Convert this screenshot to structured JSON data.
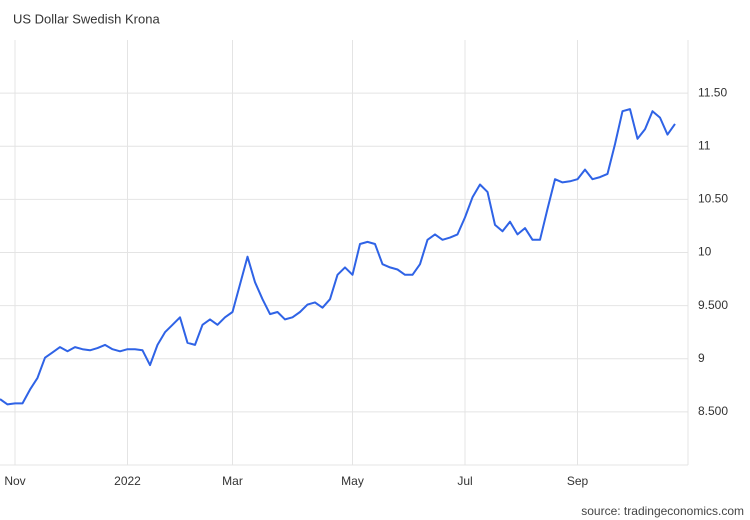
{
  "chart_data": {
    "type": "line",
    "title": "US Dollar Swedish Krona",
    "source": "source: tradingeconomics.com",
    "categories": [
      null,
      null,
      "Nov",
      null,
      null,
      null,
      null,
      null,
      null,
      null,
      null,
      null,
      null,
      null,
      null,
      null,
      null,
      "2022",
      null,
      null,
      null,
      null,
      null,
      null,
      null,
      null,
      null,
      null,
      null,
      null,
      null,
      "Mar",
      null,
      null,
      null,
      null,
      null,
      null,
      null,
      null,
      null,
      null,
      null,
      null,
      null,
      null,
      null,
      "May",
      null,
      null,
      null,
      null,
      null,
      null,
      null,
      null,
      null,
      null,
      null,
      null,
      null,
      null,
      "Jul",
      null,
      null,
      null,
      null,
      null,
      null,
      null,
      null,
      null,
      null,
      null,
      null,
      null,
      null,
      "Sep",
      null,
      null,
      null,
      null,
      null,
      null,
      null,
      null,
      null,
      null,
      null,
      null,
      null
    ],
    "values": [
      8.62,
      8.57,
      8.58,
      8.58,
      8.71,
      8.82,
      9.01,
      9.06,
      9.11,
      9.07,
      9.11,
      9.09,
      9.08,
      9.1,
      9.13,
      9.09,
      9.07,
      9.09,
      9.09,
      9.08,
      8.94,
      9.13,
      9.25,
      9.32,
      9.39,
      9.15,
      9.13,
      9.32,
      9.37,
      9.32,
      9.39,
      9.44,
      9.7,
      9.96,
      9.72,
      9.56,
      9.42,
      9.44,
      9.37,
      9.39,
      9.44,
      9.51,
      9.53,
      9.48,
      9.56,
      9.79,
      9.86,
      9.79,
      10.08,
      10.1,
      10.08,
      9.89,
      9.86,
      9.84,
      9.79,
      9.79,
      9.89,
      10.12,
      10.17,
      10.12,
      10.14,
      10.17,
      10.33,
      10.52,
      10.64,
      10.57,
      10.26,
      10.2,
      10.29,
      10.17,
      10.23,
      10.12,
      10.12,
      10.41,
      10.69,
      10.66,
      10.67,
      10.69,
      10.78,
      10.69,
      10.71,
      10.74,
      11.02,
      11.33,
      11.35,
      11.07,
      11.16,
      11.33,
      11.27,
      11.11,
      11.21
    ],
    "color": "#2f63e6",
    "ylim": [
      8,
      12
    ],
    "yticks": [
      {
        "value": 8.5,
        "label": "8.500"
      },
      9,
      {
        "value": 9.5,
        "label": "9.500"
      },
      10,
      {
        "value": 10.5,
        "label": "10.50"
      },
      11,
      {
        "value": 11.5,
        "label": "11.50"
      }
    ],
    "grid": true
  }
}
